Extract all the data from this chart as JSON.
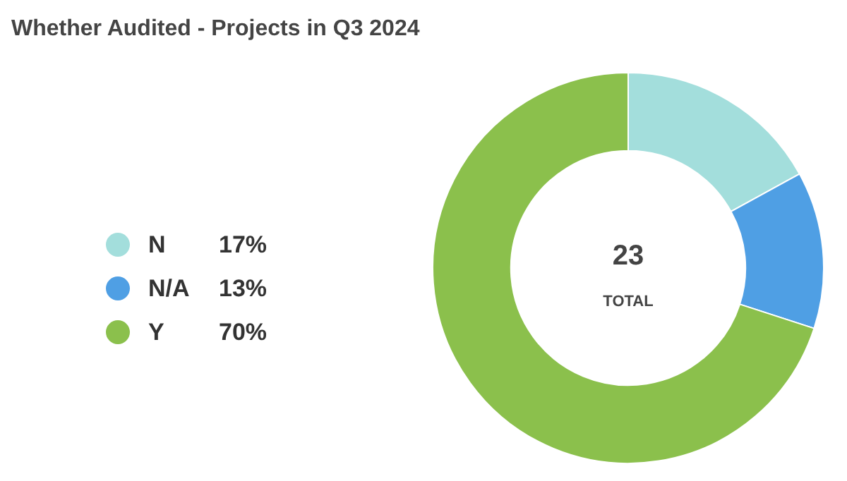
{
  "chart_data": {
    "type": "donut",
    "title": "Whether Audited - Projects in Q3 2024",
    "categories": [
      "N",
      "N/A",
      "Y"
    ],
    "values": [
      17,
      13,
      70
    ],
    "colors": [
      "#a3dedc",
      "#4f9fe4",
      "#8bc04c"
    ],
    "value_labels": [
      "17%",
      "13%",
      "70%"
    ],
    "legend": "left",
    "annotations": [
      "23",
      "TOTAL"
    ]
  }
}
